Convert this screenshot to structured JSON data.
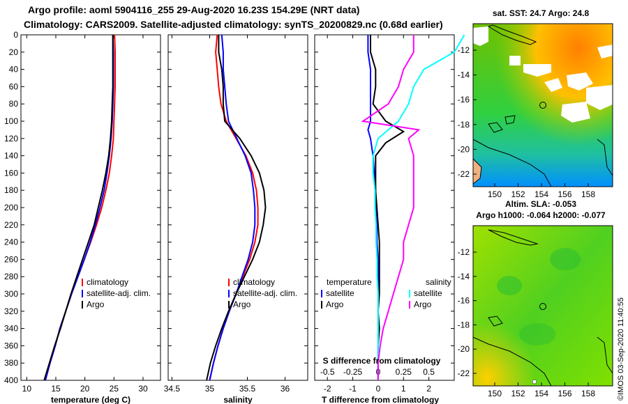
{
  "header": {
    "title_line1": "Argo profile: aoml 5904116_255 29-Aug-2020 16.23S 154.29E (NRT data)",
    "title_line2": "Climatology: CARS2009. Satellite-adjusted climatology: synTS_20200829.nc (0.68d earlier)"
  },
  "credit": "©IMOS 03-Sep-2020 11:40:55",
  "depth_ticks": [
    0,
    20,
    40,
    60,
    80,
    100,
    120,
    140,
    160,
    180,
    200,
    220,
    240,
    260,
    280,
    300,
    320,
    340,
    360,
    380,
    400
  ],
  "chart_data": [
    {
      "type": "line",
      "id": "temperature",
      "xlabel": "temperature (deg C)",
      "ylabel": "depth",
      "xlim": [
        9,
        33
      ],
      "ylim": [
        400,
        0
      ],
      "xticks": [
        10,
        15,
        20,
        25,
        30
      ],
      "legend": [
        "climatology",
        "satellite-adj. clim.",
        "Argo"
      ],
      "series": [
        {
          "name": "climatology",
          "color": "#ff0000",
          "points": [
            [
              25.1,
              0
            ],
            [
              25.2,
              20
            ],
            [
              25.2,
              40
            ],
            [
              25.2,
              60
            ],
            [
              25.1,
              80
            ],
            [
              25.0,
              100
            ],
            [
              24.9,
              120
            ],
            [
              24.6,
              140
            ],
            [
              24.2,
              160
            ],
            [
              23.6,
              180
            ],
            [
              22.9,
              200
            ],
            [
              22.0,
              220
            ],
            [
              21.0,
              240
            ],
            [
              19.9,
              260
            ],
            [
              18.8,
              280
            ],
            [
              17.7,
              300
            ],
            [
              16.7,
              320
            ],
            [
              15.7,
              340
            ],
            [
              14.9,
              360
            ],
            [
              14.0,
              380
            ],
            [
              13.2,
              400
            ]
          ]
        },
        {
          "name": "satellite-adj. clim.",
          "color": "#0000ff",
          "points": [
            [
              24.8,
              0
            ],
            [
              24.9,
              20
            ],
            [
              24.9,
              40
            ],
            [
              24.9,
              60
            ],
            [
              24.8,
              80
            ],
            [
              24.7,
              100
            ],
            [
              24.5,
              120
            ],
            [
              24.2,
              140
            ],
            [
              23.8,
              160
            ],
            [
              23.3,
              180
            ],
            [
              22.6,
              200
            ],
            [
              21.8,
              220
            ],
            [
              20.9,
              240
            ],
            [
              19.9,
              260
            ],
            [
              18.8,
              280
            ],
            [
              17.7,
              300
            ],
            [
              16.7,
              320
            ],
            [
              15.7,
              340
            ],
            [
              14.9,
              360
            ],
            [
              14.0,
              380
            ],
            [
              13.2,
              400
            ]
          ]
        },
        {
          "name": "Argo",
          "color": "#000000",
          "points": [
            [
              24.8,
              0
            ],
            [
              24.8,
              20
            ],
            [
              24.8,
              40
            ],
            [
              24.8,
              60
            ],
            [
              24.7,
              80
            ],
            [
              24.6,
              100
            ],
            [
              24.4,
              120
            ],
            [
              24.1,
              140
            ],
            [
              23.6,
              160
            ],
            [
              23.0,
              180
            ],
            [
              22.3,
              200
            ],
            [
              21.6,
              220
            ],
            [
              20.6,
              240
            ],
            [
              19.6,
              260
            ],
            [
              18.6,
              280
            ],
            [
              17.6,
              300
            ],
            [
              16.7,
              320
            ],
            [
              15.8,
              340
            ],
            [
              14.8,
              360
            ],
            [
              13.9,
              380
            ],
            [
              13.0,
              400
            ]
          ]
        }
      ]
    },
    {
      "type": "line",
      "id": "salinity",
      "xlabel": "salinity",
      "ylabel": "depth",
      "xlim": [
        34.45,
        36.3
      ],
      "ylim": [
        400,
        0
      ],
      "xticks": [
        34.5,
        35,
        35.5,
        36
      ],
      "legend": [
        "climatology",
        "satellite-adj. clim.",
        "Argo"
      ],
      "series": [
        {
          "name": "climatology",
          "color": "#ff0000",
          "points": [
            [
              35.1,
              0
            ],
            [
              35.08,
              20
            ],
            [
              35.1,
              40
            ],
            [
              35.12,
              60
            ],
            [
              35.15,
              80
            ],
            [
              35.22,
              100
            ],
            [
              35.35,
              120
            ],
            [
              35.48,
              140
            ],
            [
              35.57,
              160
            ],
            [
              35.62,
              180
            ],
            [
              35.64,
              200
            ],
            [
              35.64,
              220
            ],
            [
              35.6,
              240
            ],
            [
              35.53,
              260
            ],
            [
              35.44,
              280
            ],
            [
              35.35,
              300
            ],
            [
              35.26,
              320
            ],
            [
              35.18,
              340
            ],
            [
              35.11,
              360
            ],
            [
              35.05,
              380
            ],
            [
              35.0,
              400
            ]
          ]
        },
        {
          "name": "satellite-adj. clim.",
          "color": "#0000ff",
          "points": [
            [
              35.16,
              0
            ],
            [
              35.18,
              20
            ],
            [
              35.18,
              40
            ],
            [
              35.2,
              60
            ],
            [
              35.22,
              80
            ],
            [
              35.25,
              100
            ],
            [
              35.36,
              120
            ],
            [
              35.47,
              140
            ],
            [
              35.55,
              160
            ],
            [
              35.58,
              180
            ],
            [
              35.6,
              200
            ],
            [
              35.6,
              220
            ],
            [
              35.57,
              240
            ],
            [
              35.51,
              260
            ],
            [
              35.43,
              280
            ],
            [
              35.35,
              300
            ],
            [
              35.26,
              320
            ],
            [
              35.18,
              340
            ],
            [
              35.11,
              360
            ],
            [
              35.05,
              380
            ],
            [
              35.0,
              400
            ]
          ]
        },
        {
          "name": "Argo",
          "color": "#000000",
          "points": [
            [
              35.12,
              0
            ],
            [
              35.12,
              20
            ],
            [
              35.16,
              40
            ],
            [
              35.18,
              60
            ],
            [
              35.18,
              80
            ],
            [
              35.2,
              100
            ],
            [
              35.4,
              120
            ],
            [
              35.55,
              140
            ],
            [
              35.66,
              160
            ],
            [
              35.72,
              180
            ],
            [
              35.74,
              200
            ],
            [
              35.71,
              220
            ],
            [
              35.66,
              240
            ],
            [
              35.57,
              260
            ],
            [
              35.46,
              280
            ],
            [
              35.35,
              300
            ],
            [
              35.25,
              320
            ],
            [
              35.16,
              340
            ],
            [
              35.08,
              360
            ],
            [
              35.01,
              380
            ],
            [
              34.96,
              400
            ]
          ]
        }
      ]
    },
    {
      "type": "line",
      "id": "difference",
      "xlabel": "T difference from climatology",
      "xlabel_top": "S difference from climatology",
      "ylabel": "depth",
      "xlim": [
        -2.5,
        3
      ],
      "ylim": [
        400,
        0
      ],
      "xticks": [
        -2,
        -1,
        0,
        1,
        2
      ],
      "s_ticks": [
        -0.5,
        -0.25,
        0,
        0.25,
        0.5
      ],
      "legend_left_title": "temperature",
      "legend_right_title": "salinity",
      "legend": [
        "satellite",
        "Argo",
        "satellite",
        "Argo"
      ],
      "series": [
        {
          "name": "T satellite",
          "color": "#0000ff",
          "points": [
            [
              -0.4,
              0
            ],
            [
              -0.4,
              20
            ],
            [
              -0.3,
              40
            ],
            [
              -0.3,
              60
            ],
            [
              -0.3,
              80
            ],
            [
              -0.3,
              100
            ],
            [
              -0.4,
              110
            ],
            [
              -0.3,
              120
            ],
            [
              -0.2,
              140
            ],
            [
              -0.15,
              160
            ],
            [
              -0.1,
              180
            ],
            [
              -0.1,
              200
            ],
            [
              -0.05,
              220
            ],
            [
              -0.05,
              240
            ],
            [
              0.0,
              260
            ],
            [
              0.0,
              280
            ],
            [
              0.0,
              300
            ],
            [
              0.0,
              320
            ],
            [
              0.0,
              340
            ],
            [
              0.0,
              360
            ],
            [
              0.0,
              380
            ],
            [
              0.0,
              400
            ]
          ]
        },
        {
          "name": "T Argo",
          "color": "#000000",
          "points": [
            [
              -0.3,
              0
            ],
            [
              -0.3,
              20
            ],
            [
              -0.1,
              40
            ],
            [
              -0.1,
              60
            ],
            [
              -0.2,
              80
            ],
            [
              0.3,
              100
            ],
            [
              1.0,
              112
            ],
            [
              0.3,
              125
            ],
            [
              -0.1,
              140
            ],
            [
              -0.1,
              160
            ],
            [
              -0.1,
              180
            ],
            [
              -0.05,
              200
            ],
            [
              0.0,
              220
            ],
            [
              0.05,
              240
            ],
            [
              0.05,
              260
            ],
            [
              0.05,
              280
            ],
            [
              0.05,
              300
            ],
            [
              0.0,
              320
            ],
            [
              0.05,
              340
            ],
            [
              0.0,
              360
            ],
            [
              0.0,
              380
            ],
            [
              0.0,
              400
            ]
          ]
        },
        {
          "name": "S satellite",
          "color": "#00ffff",
          "points": [
            [
              0.85,
              0
            ],
            [
              0.75,
              20
            ],
            [
              0.45,
              40
            ],
            [
              0.35,
              60
            ],
            [
              0.3,
              80
            ],
            [
              0.2,
              100
            ],
            [
              0.0,
              120
            ],
            [
              -0.05,
              140
            ],
            [
              -0.05,
              160
            ],
            [
              -0.03,
              180
            ],
            [
              -0.03,
              200
            ],
            [
              -0.02,
              220
            ],
            [
              -0.02,
              240
            ],
            [
              -0.01,
              260
            ],
            [
              -0.01,
              280
            ],
            [
              0.0,
              300
            ],
            [
              0.0,
              320
            ],
            [
              0.0,
              340
            ],
            [
              0.0,
              360
            ],
            [
              0.0,
              380
            ],
            [
              0.0,
              400
            ]
          ]
        },
        {
          "name": "S Argo",
          "color": "#ff00ff",
          "points": [
            [
              0.35,
              0
            ],
            [
              0.35,
              20
            ],
            [
              0.25,
              40
            ],
            [
              0.2,
              60
            ],
            [
              0.1,
              80
            ],
            [
              -0.15,
              100
            ],
            [
              0.4,
              110
            ],
            [
              0.3,
              120
            ],
            [
              0.35,
              140
            ],
            [
              0.35,
              160
            ],
            [
              0.35,
              180
            ],
            [
              0.35,
              200
            ],
            [
              0.3,
              220
            ],
            [
              0.25,
              240
            ],
            [
              0.25,
              260
            ],
            [
              0.2,
              280
            ],
            [
              0.15,
              300
            ],
            [
              0.1,
              320
            ],
            [
              0.05,
              340
            ],
            [
              0.02,
              360
            ],
            [
              0.0,
              380
            ],
            [
              0.0,
              400
            ]
          ]
        }
      ]
    }
  ],
  "maps": [
    {
      "id": "sst-map",
      "title": "sat. SST: 24.7 Argo: 24.8",
      "subtitle": "Altim. SLA: -0.053",
      "lat_ticks": [
        "-12",
        "-14",
        "-16",
        "-18",
        "-20",
        "-22"
      ],
      "lon_ticks": [
        "150",
        "152",
        "154",
        "156",
        "158"
      ]
    },
    {
      "id": "sla-map",
      "title": "Argo h1000: -0.064 h2000: -0.077",
      "lat_ticks": [
        "-12",
        "-14",
        "-16",
        "-18",
        "-20",
        "-22"
      ],
      "lon_ticks": [
        "150",
        "152",
        "154",
        "156",
        "158"
      ]
    }
  ]
}
